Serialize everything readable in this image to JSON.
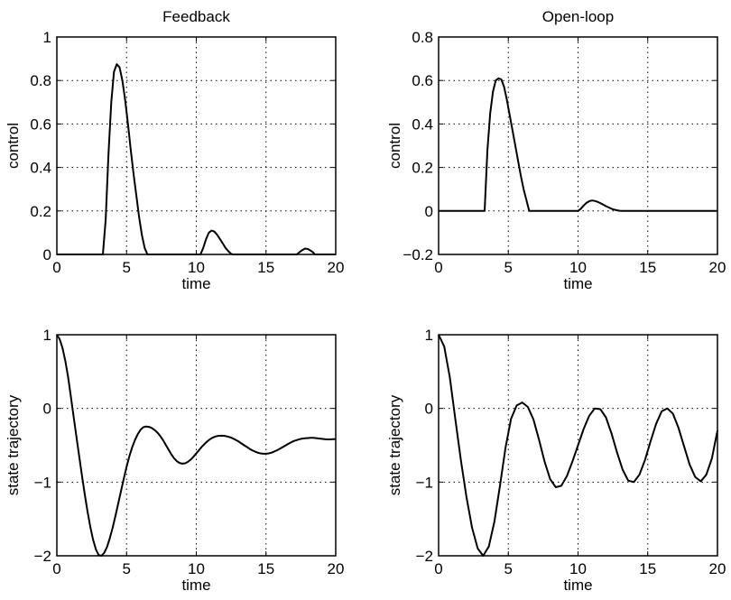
{
  "chart_data": [
    {
      "type": "line",
      "title": "Feedback",
      "xlabel": "time",
      "ylabel": "control",
      "xlim": [
        0,
        20
      ],
      "ylim": [
        0,
        1
      ],
      "xticks": [
        0,
        5,
        10,
        15,
        20
      ],
      "yticks": [
        0,
        0.2,
        0.4,
        0.6,
        0.8,
        1
      ],
      "grid": true,
      "series": [
        {
          "x": [
            0,
            3.3,
            3.5,
            3.7,
            3.9,
            4.1,
            4.3,
            4.5,
            4.7,
            4.9,
            5.1,
            5.3,
            5.5,
            5.7,
            5.9,
            6.1,
            6.3,
            6.5,
            10.3,
            10.5,
            10.7,
            10.9,
            11.1,
            11.3,
            11.5,
            11.7,
            11.9,
            12.1,
            12.3,
            12.5,
            12.6,
            17.2,
            17.4,
            17.6,
            17.8,
            18.0,
            18.2,
            18.4,
            18.5,
            20
          ],
          "y": [
            0,
            0,
            0.16,
            0.46,
            0.7,
            0.84,
            0.875,
            0.86,
            0.8,
            0.71,
            0.6,
            0.48,
            0.37,
            0.27,
            0.17,
            0.09,
            0.03,
            0,
            0,
            0.03,
            0.07,
            0.1,
            0.11,
            0.105,
            0.09,
            0.07,
            0.05,
            0.03,
            0.015,
            0.003,
            0,
            0,
            0.01,
            0.02,
            0.027,
            0.025,
            0.018,
            0.008,
            0,
            0
          ]
        }
      ]
    },
    {
      "type": "line",
      "title": "Open-loop",
      "xlabel": "time",
      "ylabel": "control",
      "xlim": [
        0,
        20
      ],
      "ylim": [
        -0.2,
        0.8
      ],
      "xticks": [
        0,
        5,
        10,
        15,
        20
      ],
      "yticks": [
        -0.2,
        0,
        0.2,
        0.4,
        0.6,
        0.8
      ],
      "grid": true,
      "series": [
        {
          "x": [
            0,
            3.3,
            3.5,
            3.7,
            3.9,
            4.1,
            4.3,
            4.5,
            4.7,
            4.9,
            5.1,
            5.3,
            5.5,
            5.7,
            5.9,
            6.1,
            6.3,
            6.5,
            10.0,
            10.2,
            10.4,
            10.6,
            10.8,
            11.0,
            11.2,
            11.4,
            11.6,
            11.8,
            12.0,
            12.2,
            12.4,
            12.6,
            12.8,
            13.0,
            13.2,
            20
          ],
          "y": [
            0,
            0,
            0.28,
            0.45,
            0.55,
            0.6,
            0.61,
            0.605,
            0.57,
            0.51,
            0.44,
            0.37,
            0.3,
            0.23,
            0.16,
            0.1,
            0.05,
            0,
            0,
            0.01,
            0.025,
            0.037,
            0.045,
            0.048,
            0.046,
            0.042,
            0.036,
            0.029,
            0.022,
            0.016,
            0.01,
            0.006,
            0.003,
            0.001,
            0,
            0
          ]
        }
      ]
    },
    {
      "type": "line",
      "title": "",
      "xlabel": "time",
      "ylabel": "state trajectory",
      "xlim": [
        0,
        20
      ],
      "ylim": [
        -2,
        1
      ],
      "xticks": [
        0,
        5,
        10,
        15,
        20
      ],
      "yticks": [
        -2,
        -1,
        0,
        1
      ],
      "grid": true,
      "series": [
        {
          "x": [
            0,
            0.2,
            0.4,
            0.6,
            0.8,
            1.0,
            1.2,
            1.4,
            1.6,
            1.8,
            2.0,
            2.2,
            2.4,
            2.6,
            2.8,
            3.0,
            3.2,
            3.4,
            3.6,
            3.8,
            4.0,
            4.2,
            4.4,
            4.6,
            4.8,
            5.0,
            5.2,
            5.4,
            5.6,
            5.8,
            6.0,
            6.2,
            6.4,
            6.6,
            6.8,
            7.0,
            7.2,
            7.4,
            7.6,
            7.8,
            8.0,
            8.2,
            8.4,
            8.6,
            8.8,
            9.0,
            9.2,
            9.4,
            9.6,
            9.8,
            10.0,
            10.2,
            10.4,
            10.6,
            10.8,
            11.0,
            11.2,
            11.4,
            11.6,
            11.8,
            12.0,
            12.2,
            12.4,
            12.6,
            12.8,
            13.0,
            13.2,
            13.4,
            13.6,
            13.8,
            14.0,
            14.2,
            14.4,
            14.6,
            14.8,
            15.0,
            15.2,
            15.4,
            15.6,
            15.8,
            16.0,
            16.2,
            16.4,
            16.6,
            16.8,
            17.0,
            17.2,
            17.4,
            17.6,
            17.8,
            18.0,
            18.2,
            18.4,
            18.6,
            18.8,
            19.0,
            19.2,
            19.4,
            19.6,
            19.8,
            20.0
          ],
          "y": [
            1.0,
            0.94,
            0.823,
            0.65,
            0.43,
            0.162,
            -0.106,
            -0.376,
            -0.645,
            -0.91,
            -1.165,
            -1.4,
            -1.61,
            -1.785,
            -1.914,
            -1.99,
            -2.0,
            -1.96,
            -1.88,
            -1.76,
            -1.62,
            -1.46,
            -1.29,
            -1.12,
            -0.95,
            -0.79,
            -0.65,
            -0.53,
            -0.43,
            -0.35,
            -0.29,
            -0.255,
            -0.245,
            -0.25,
            -0.265,
            -0.29,
            -0.325,
            -0.37,
            -0.425,
            -0.49,
            -0.555,
            -0.62,
            -0.675,
            -0.715,
            -0.74,
            -0.75,
            -0.745,
            -0.725,
            -0.695,
            -0.655,
            -0.61,
            -0.565,
            -0.52,
            -0.48,
            -0.445,
            -0.415,
            -0.395,
            -0.38,
            -0.372,
            -0.37,
            -0.372,
            -0.38,
            -0.39,
            -0.405,
            -0.425,
            -0.445,
            -0.47,
            -0.495,
            -0.52,
            -0.545,
            -0.567,
            -0.585,
            -0.6,
            -0.61,
            -0.615,
            -0.615,
            -0.61,
            -0.6,
            -0.585,
            -0.567,
            -0.547,
            -0.525,
            -0.502,
            -0.48,
            -0.46,
            -0.443,
            -0.43,
            -0.418,
            -0.41,
            -0.405,
            -0.402,
            -0.4,
            -0.4,
            -0.403,
            -0.408,
            -0.413,
            -0.418,
            -0.42,
            -0.42,
            -0.418,
            -0.415
          ]
        }
      ]
    },
    {
      "type": "line",
      "title": "",
      "xlabel": "time",
      "ylabel": "state trajectory",
      "xlim": [
        0,
        20
      ],
      "ylim": [
        -2,
        1
      ],
      "xticks": [
        0,
        5,
        10,
        15,
        20
      ],
      "yticks": [
        -2,
        -1,
        0,
        1
      ],
      "grid": true,
      "series": [
        {
          "x": [
            0,
            0.4,
            0.8,
            1.2,
            1.6,
            2.0,
            2.4,
            2.8,
            3.2,
            3.6,
            4.0,
            4.4,
            4.8,
            5.2,
            5.6,
            6.0,
            6.4,
            6.8,
            7.2,
            7.6,
            8.0,
            8.4,
            8.8,
            9.2,
            9.6,
            10.0,
            10.4,
            10.8,
            11.2,
            11.6,
            12.0,
            12.4,
            12.8,
            13.2,
            13.6,
            14.0,
            14.4,
            14.8,
            15.2,
            15.6,
            16.0,
            16.4,
            16.8,
            17.2,
            17.6,
            18.0,
            18.4,
            18.8,
            19.2,
            19.6,
            20.0
          ],
          "y": [
            1.0,
            0.842,
            0.424,
            -0.142,
            -0.703,
            -1.204,
            -1.62,
            -1.9,
            -2.0,
            -1.875,
            -1.54,
            -1.05,
            -0.53,
            -0.14,
            0.04,
            0.08,
            0.02,
            -0.15,
            -0.42,
            -0.72,
            -0.96,
            -1.07,
            -1.05,
            -0.92,
            -0.72,
            -0.5,
            -0.28,
            -0.1,
            0.0,
            -0.01,
            -0.12,
            -0.34,
            -0.6,
            -0.83,
            -0.98,
            -1.0,
            -0.9,
            -0.7,
            -0.45,
            -0.21,
            -0.04,
            0.0,
            -0.07,
            -0.26,
            -0.51,
            -0.76,
            -0.93,
            -0.99,
            -0.9,
            -0.68,
            -0.3
          ]
        }
      ]
    }
  ]
}
